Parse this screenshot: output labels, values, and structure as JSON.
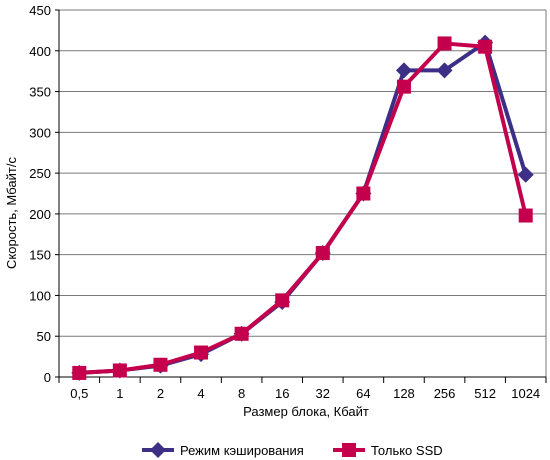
{
  "chart_data": {
    "type": "line",
    "title": "",
    "xlabel": "Размер блока, Кбайт",
    "ylabel": "Скорость, Мбайт/с",
    "ylim": [
      0,
      450
    ],
    "yticks": [
      "0",
      "50",
      "100",
      "150",
      "200",
      "250",
      "300",
      "350",
      "400",
      "450"
    ],
    "categories": [
      "0,5",
      "1",
      "2",
      "4",
      "8",
      "16",
      "32",
      "64",
      "128",
      "256",
      "512",
      "1024"
    ],
    "grid": true,
    "legend_position": "bottom",
    "series": [
      {
        "name": "Режим кэширования",
        "marker": "diamond",
        "color": "#3d2e86",
        "values": [
          5,
          8,
          14,
          28,
          53,
          92,
          152,
          225,
          376,
          376,
          410,
          248
        ]
      },
      {
        "name": "Только SSD",
        "marker": "square",
        "color": "#c4004c",
        "values": [
          5,
          8,
          15,
          30,
          53,
          94,
          152,
          225,
          356,
          409,
          405,
          198
        ]
      }
    ]
  }
}
